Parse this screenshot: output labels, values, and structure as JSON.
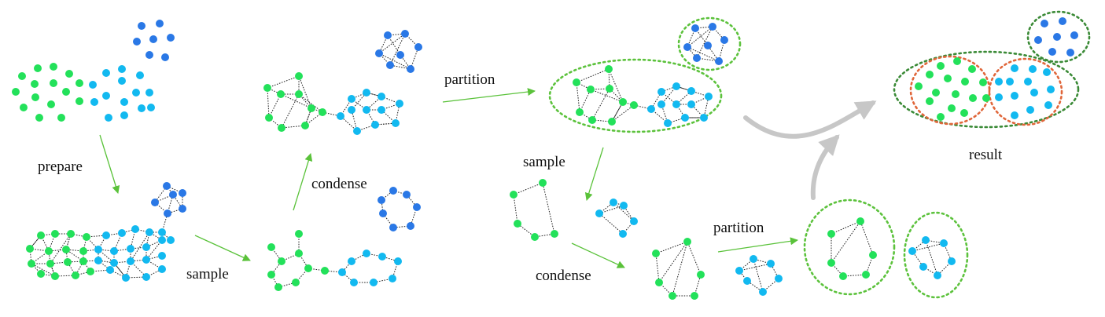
{
  "labels": {
    "prepare": "prepare",
    "sample_1": "sample",
    "condense_1": "condense",
    "partition_1": "partition",
    "sample_2": "sample",
    "condense_2": "condense",
    "partition_2": "partition",
    "result": "result"
  },
  "colors": {
    "green_node": "#23e15a",
    "cyan_node": "#12b9f0",
    "blue_node": "#2a78e6",
    "arrow": "#5ac23a",
    "partition_ring": "#5cc23c",
    "result_outer_ring": "#3a8a36",
    "result_inner_ring": "#e0663a",
    "big_arrow": "#c7c7c7"
  }
}
